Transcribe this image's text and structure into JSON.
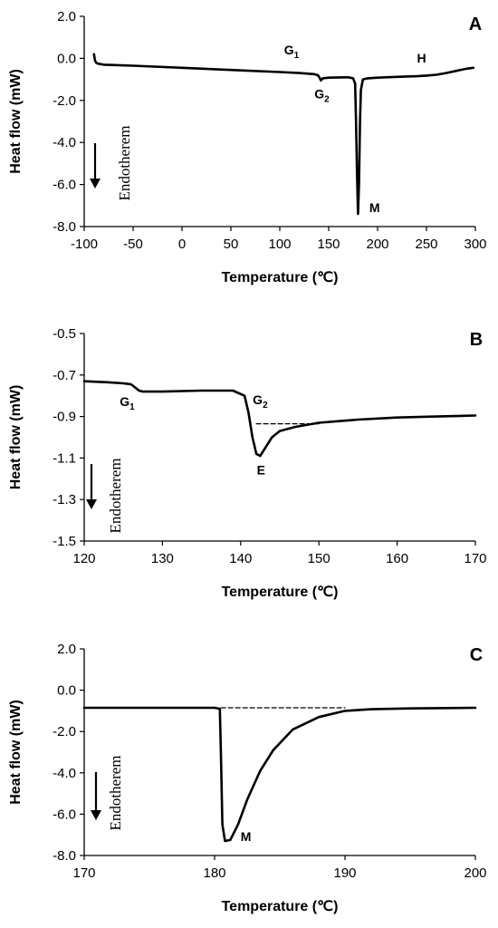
{
  "chart_data": [
    {
      "panel": "A",
      "type": "line",
      "xlabel": "Temperature (℃)",
      "ylabel": "Heat flow (mW)",
      "xlim": [
        -100,
        300
      ],
      "ylim": [
        -8.0,
        2.0
      ],
      "xticks": [
        "-100",
        "-50",
        "0",
        "50",
        "100",
        "150",
        "200",
        "250",
        "300"
      ],
      "yticks": [
        "2.0",
        "0.0",
        "-2.0",
        "-4.0",
        "-6.0",
        "-8.0"
      ],
      "grid": false,
      "endotherm_label": "Endotherem",
      "series": [
        {
          "x": [
            -90,
            -89,
            -88,
            -86,
            -80,
            -50,
            0,
            50,
            100,
            120,
            135,
            139,
            141,
            142,
            144,
            150,
            170,
            175,
            177,
            178,
            179,
            180,
            181,
            182,
            183,
            185,
            190,
            200,
            220,
            240,
            250,
            260,
            270,
            280,
            290,
            298
          ],
          "y": [
            0.2,
            -0.1,
            -0.2,
            -0.25,
            -0.3,
            -0.35,
            -0.45,
            -0.55,
            -0.65,
            -0.7,
            -0.75,
            -0.8,
            -0.95,
            -1.05,
            -0.95,
            -0.92,
            -0.9,
            -0.95,
            -1.2,
            -3.0,
            -5.5,
            -7.4,
            -6.0,
            -3.0,
            -1.5,
            -1.0,
            -0.95,
            -0.92,
            -0.88,
            -0.85,
            -0.82,
            -0.78,
            -0.7,
            -0.6,
            -0.5,
            -0.45
          ]
        }
      ],
      "annotations": [
        {
          "base": "G",
          "sub": "1",
          "x": 112,
          "y": 0.2
        },
        {
          "base": "G",
          "sub": "2",
          "x": 143,
          "y": -1.9
        },
        {
          "text": "M",
          "x": 197,
          "y": -7.3
        },
        {
          "text": "H",
          "x": 245,
          "y": -0.2
        }
      ]
    },
    {
      "panel": "B",
      "type": "line",
      "xlabel": "Temperature (℃)",
      "ylabel": "Heat flow (mW)",
      "xlim": [
        120,
        170
      ],
      "ylim": [
        -1.5,
        -0.5
      ],
      "xticks": [
        "120",
        "130",
        "140",
        "150",
        "160",
        "170"
      ],
      "yticks": [
        "-0.5",
        "-0.7",
        "-0.9",
        "-1.1",
        "-1.3",
        "-1.5"
      ],
      "grid": false,
      "endotherm_label": "Endotherem",
      "series": [
        {
          "x": [
            120,
            123,
            125,
            126,
            126.5,
            127,
            127.5,
            130,
            135,
            139,
            140.5,
            141,
            141.5,
            142,
            142.5,
            143,
            144,
            145,
            147,
            150,
            155,
            160,
            165,
            170
          ],
          "y": [
            -0.73,
            -0.735,
            -0.74,
            -0.745,
            -0.76,
            -0.775,
            -0.78,
            -0.78,
            -0.775,
            -0.775,
            -0.8,
            -0.88,
            -1.0,
            -1.08,
            -1.09,
            -1.06,
            -1.0,
            -0.97,
            -0.95,
            -0.93,
            -0.915,
            -0.905,
            -0.9,
            -0.895
          ]
        },
        {
          "name": "",
          "style": "dashed",
          "x": [
            142,
            150
          ],
          "y": [
            -0.935,
            -0.935
          ]
        }
      ],
      "annotations": [
        {
          "base": "G",
          "sub": "1",
          "x": 125.5,
          "y": -0.85
        },
        {
          "base": "G",
          "sub": "2",
          "x": 142.5,
          "y": -0.84
        },
        {
          "text": "E",
          "x": 142.6,
          "y": -1.18
        }
      ]
    },
    {
      "panel": "C",
      "type": "line",
      "xlabel": "Temperature (℃)",
      "ylabel": "Heat flow (mW)",
      "xlim": [
        170,
        200
      ],
      "ylim": [
        -8.0,
        2.0
      ],
      "xticks": [
        "170",
        "180",
        "190",
        "200"
      ],
      "yticks": [
        "2.0",
        "0.0",
        "-2.0",
        "-4.0",
        "-6.0",
        "-8.0"
      ],
      "grid": false,
      "endotherm_label": "Endotherem",
      "series": [
        {
          "x": [
            170,
            175,
            180,
            180.4,
            180.5,
            180.6,
            180.8,
            181.2,
            181.8,
            182.5,
            183.5,
            184.5,
            186,
            188,
            190,
            192,
            195,
            200
          ],
          "y": [
            -0.85,
            -0.85,
            -0.85,
            -0.9,
            -3.5,
            -6.5,
            -7.3,
            -7.25,
            -6.5,
            -5.3,
            -3.9,
            -2.9,
            -1.9,
            -1.3,
            -1.0,
            -0.92,
            -0.88,
            -0.85
          ]
        },
        {
          "name": "",
          "style": "dashed",
          "x": [
            180.5,
            190
          ],
          "y": [
            -0.85,
            -0.85
          ]
        }
      ],
      "annotations": [
        {
          "text": "M",
          "x": 182.4,
          "y": -7.3
        }
      ]
    }
  ]
}
